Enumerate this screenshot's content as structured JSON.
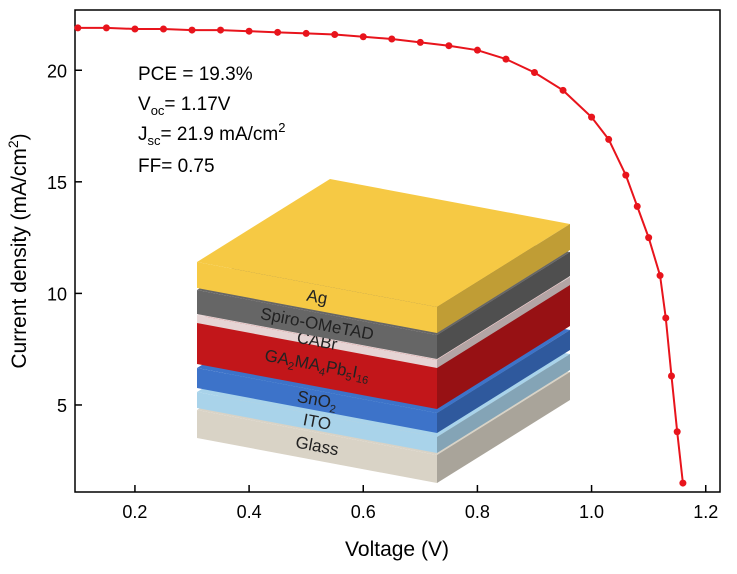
{
  "chart_data": {
    "type": "line",
    "xlabel": "Voltage (V)",
    "ylabel": [
      "Current density (mA/cm",
      "2",
      ")"
    ],
    "xlim": [
      0.095,
      1.225
    ],
    "ylim": [
      1.1,
      22.7
    ],
    "xticks": [
      0.2,
      0.4,
      0.6,
      0.8,
      {
        "value": 1,
        "label": "1.0"
      },
      1.2
    ],
    "yticks": [
      5,
      10,
      15,
      20
    ],
    "x": [
      0.1,
      0.15,
      0.2,
      0.25,
      0.3,
      0.35,
      0.4,
      0.45,
      0.5,
      0.55,
      0.6,
      0.65,
      0.7,
      0.75,
      0.8,
      0.85,
      0.9,
      0.95,
      1.0,
      1.03,
      1.06,
      1.08,
      1.1,
      1.12,
      1.13,
      1.14,
      1.15,
      1.16
    ],
    "series": [
      {
        "color": "#e8141c",
        "values": [
          21.9,
          21.9,
          21.85,
          21.85,
          21.8,
          21.8,
          21.75,
          21.7,
          21.65,
          21.6,
          21.5,
          21.4,
          21.25,
          21.1,
          20.9,
          20.5,
          19.9,
          19.1,
          17.9,
          16.9,
          15.3,
          13.9,
          12.5,
          10.8,
          8.9,
          6.3,
          3.8,
          1.5
        ]
      }
    ],
    "annotations": {
      "pce": "PCE = 19.3%",
      "voc": [
        "V",
        "oc",
        "= 1.17V"
      ],
      "jsc": [
        "J",
        "sc",
        "= 21.9 mA/cm",
        "2"
      ],
      "ff": "FF= 0.75"
    },
    "layers": [
      {
        "parts": [
          "Glass"
        ],
        "color": "#d9d3c6"
      },
      {
        "parts": [
          "ITO"
        ],
        "color": "#a9d3ea"
      },
      {
        "parts": [
          "SnO",
          "2"
        ],
        "color": "#3d73c9"
      },
      {
        "parts": [
          "GA",
          "2",
          "MA",
          "4",
          "Pb",
          "5",
          "I",
          "16"
        ],
        "color": "#c2161a"
      },
      {
        "parts": [
          "CABr"
        ],
        "color": "#e6d4d4"
      },
      {
        "parts": [
          "Spiro-OMeTAD"
        ],
        "color": "#666666"
      },
      {
        "parts": [
          "Ag"
        ],
        "color": "#f6c944"
      }
    ]
  }
}
